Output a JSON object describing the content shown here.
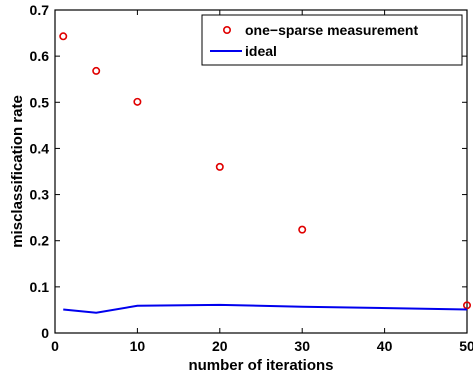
{
  "chart_data": {
    "type": "scatter",
    "xlabel": "number of iterations",
    "ylabel": "misclassification rate",
    "xlim": [
      0,
      50
    ],
    "ylim": [
      0,
      0.7
    ],
    "xticks": [
      "0",
      "10",
      "20",
      "30",
      "40",
      "50"
    ],
    "yticks": [
      "0",
      "0.1",
      "0.2",
      "0.3",
      "0.4",
      "0.5",
      "0.6",
      "0.7"
    ],
    "grid": false,
    "legend_position": "top-right",
    "series": [
      {
        "name": "one−sparse measurement",
        "kind": "scatter",
        "marker": "circle",
        "color": "#e00000",
        "x": [
          1,
          5,
          10,
          20,
          30,
          50
        ],
        "y": [
          0.643,
          0.568,
          0.501,
          0.36,
          0.224,
          0.06
        ]
      },
      {
        "name": "ideal",
        "kind": "line",
        "color": "#0000ee",
        "x": [
          1,
          5,
          10,
          20,
          30,
          50
        ],
        "y": [
          0.051,
          0.044,
          0.059,
          0.061,
          0.057,
          0.051
        ]
      }
    ]
  }
}
